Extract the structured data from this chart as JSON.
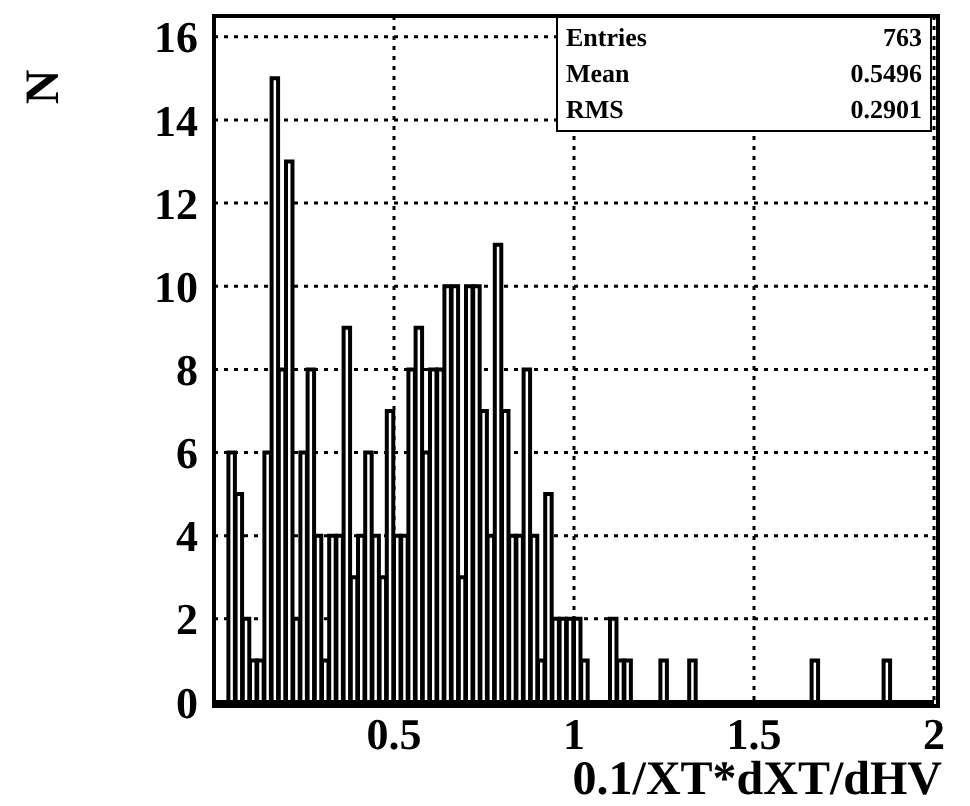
{
  "chart_data": {
    "type": "histogram",
    "xlabel": "0.1/XT*dXT/dHV",
    "ylabel": "N",
    "bins": [
      0.04,
      0.06,
      0.08,
      0.1,
      0.12,
      0.14,
      0.16,
      0.18,
      0.2,
      0.22,
      0.24,
      0.26,
      0.28,
      0.3,
      0.32,
      0.34,
      0.36,
      0.38,
      0.4,
      0.42,
      0.44,
      0.46,
      0.48,
      0.5,
      0.52,
      0.54,
      0.56,
      0.58,
      0.6,
      0.62,
      0.64,
      0.66,
      0.68,
      0.7,
      0.72,
      0.74,
      0.76,
      0.78,
      0.8,
      0.82,
      0.84,
      0.86,
      0.88,
      0.9,
      0.92,
      0.94,
      0.96,
      0.98,
      1.0,
      1.02,
      1.04,
      1.06,
      1.08,
      1.1,
      1.12,
      1.14,
      1.16,
      1.18,
      1.2,
      1.22,
      1.24,
      1.26,
      1.28,
      1.3,
      1.32,
      1.34,
      1.36,
      1.38,
      1.4,
      1.42,
      1.44,
      1.46,
      1.48,
      1.5,
      1.52,
      1.54,
      1.56,
      1.58,
      1.6,
      1.62,
      1.64,
      1.66,
      1.68,
      1.7,
      1.72,
      1.74,
      1.76,
      1.78,
      1.8,
      1.82,
      1.84,
      1.86,
      1.88,
      1.9,
      1.92,
      1.94,
      1.96,
      1.98,
      2.0
    ],
    "values": [
      6,
      5,
      2,
      1,
      1,
      6,
      15,
      8,
      13,
      2,
      6,
      8,
      4,
      1,
      4,
      4,
      9,
      3,
      4,
      6,
      4,
      3,
      7,
      4,
      4,
      8,
      9,
      6,
      8,
      8,
      10,
      10,
      3,
      10,
      10,
      7,
      4,
      11,
      7,
      4,
      4,
      8,
      4,
      1,
      5,
      2,
      2,
      2,
      2,
      1,
      0,
      0,
      0,
      2,
      1,
      1,
      0,
      0,
      0,
      0,
      1,
      0,
      0,
      0,
      1,
      0,
      0,
      0,
      0,
      0,
      0,
      0,
      0,
      0,
      0,
      0,
      0,
      0,
      0,
      0,
      0,
      1,
      0,
      0,
      0,
      0,
      0,
      0,
      0,
      0,
      0,
      1,
      0,
      0,
      0,
      0,
      0,
      0
    ],
    "color": "#000000",
    "xlim": [
      0,
      2
    ],
    "xticks": [
      0.5,
      1,
      1.5,
      2
    ],
    "ylim": [
      0,
      16.5
    ],
    "yticks": [
      0,
      2,
      4,
      6,
      8,
      10,
      12,
      14,
      16
    ],
    "grid": true,
    "annotations": [
      "Entries",
      "763",
      "Mean",
      "0.5496",
      "RMS",
      "0.2901"
    ]
  }
}
